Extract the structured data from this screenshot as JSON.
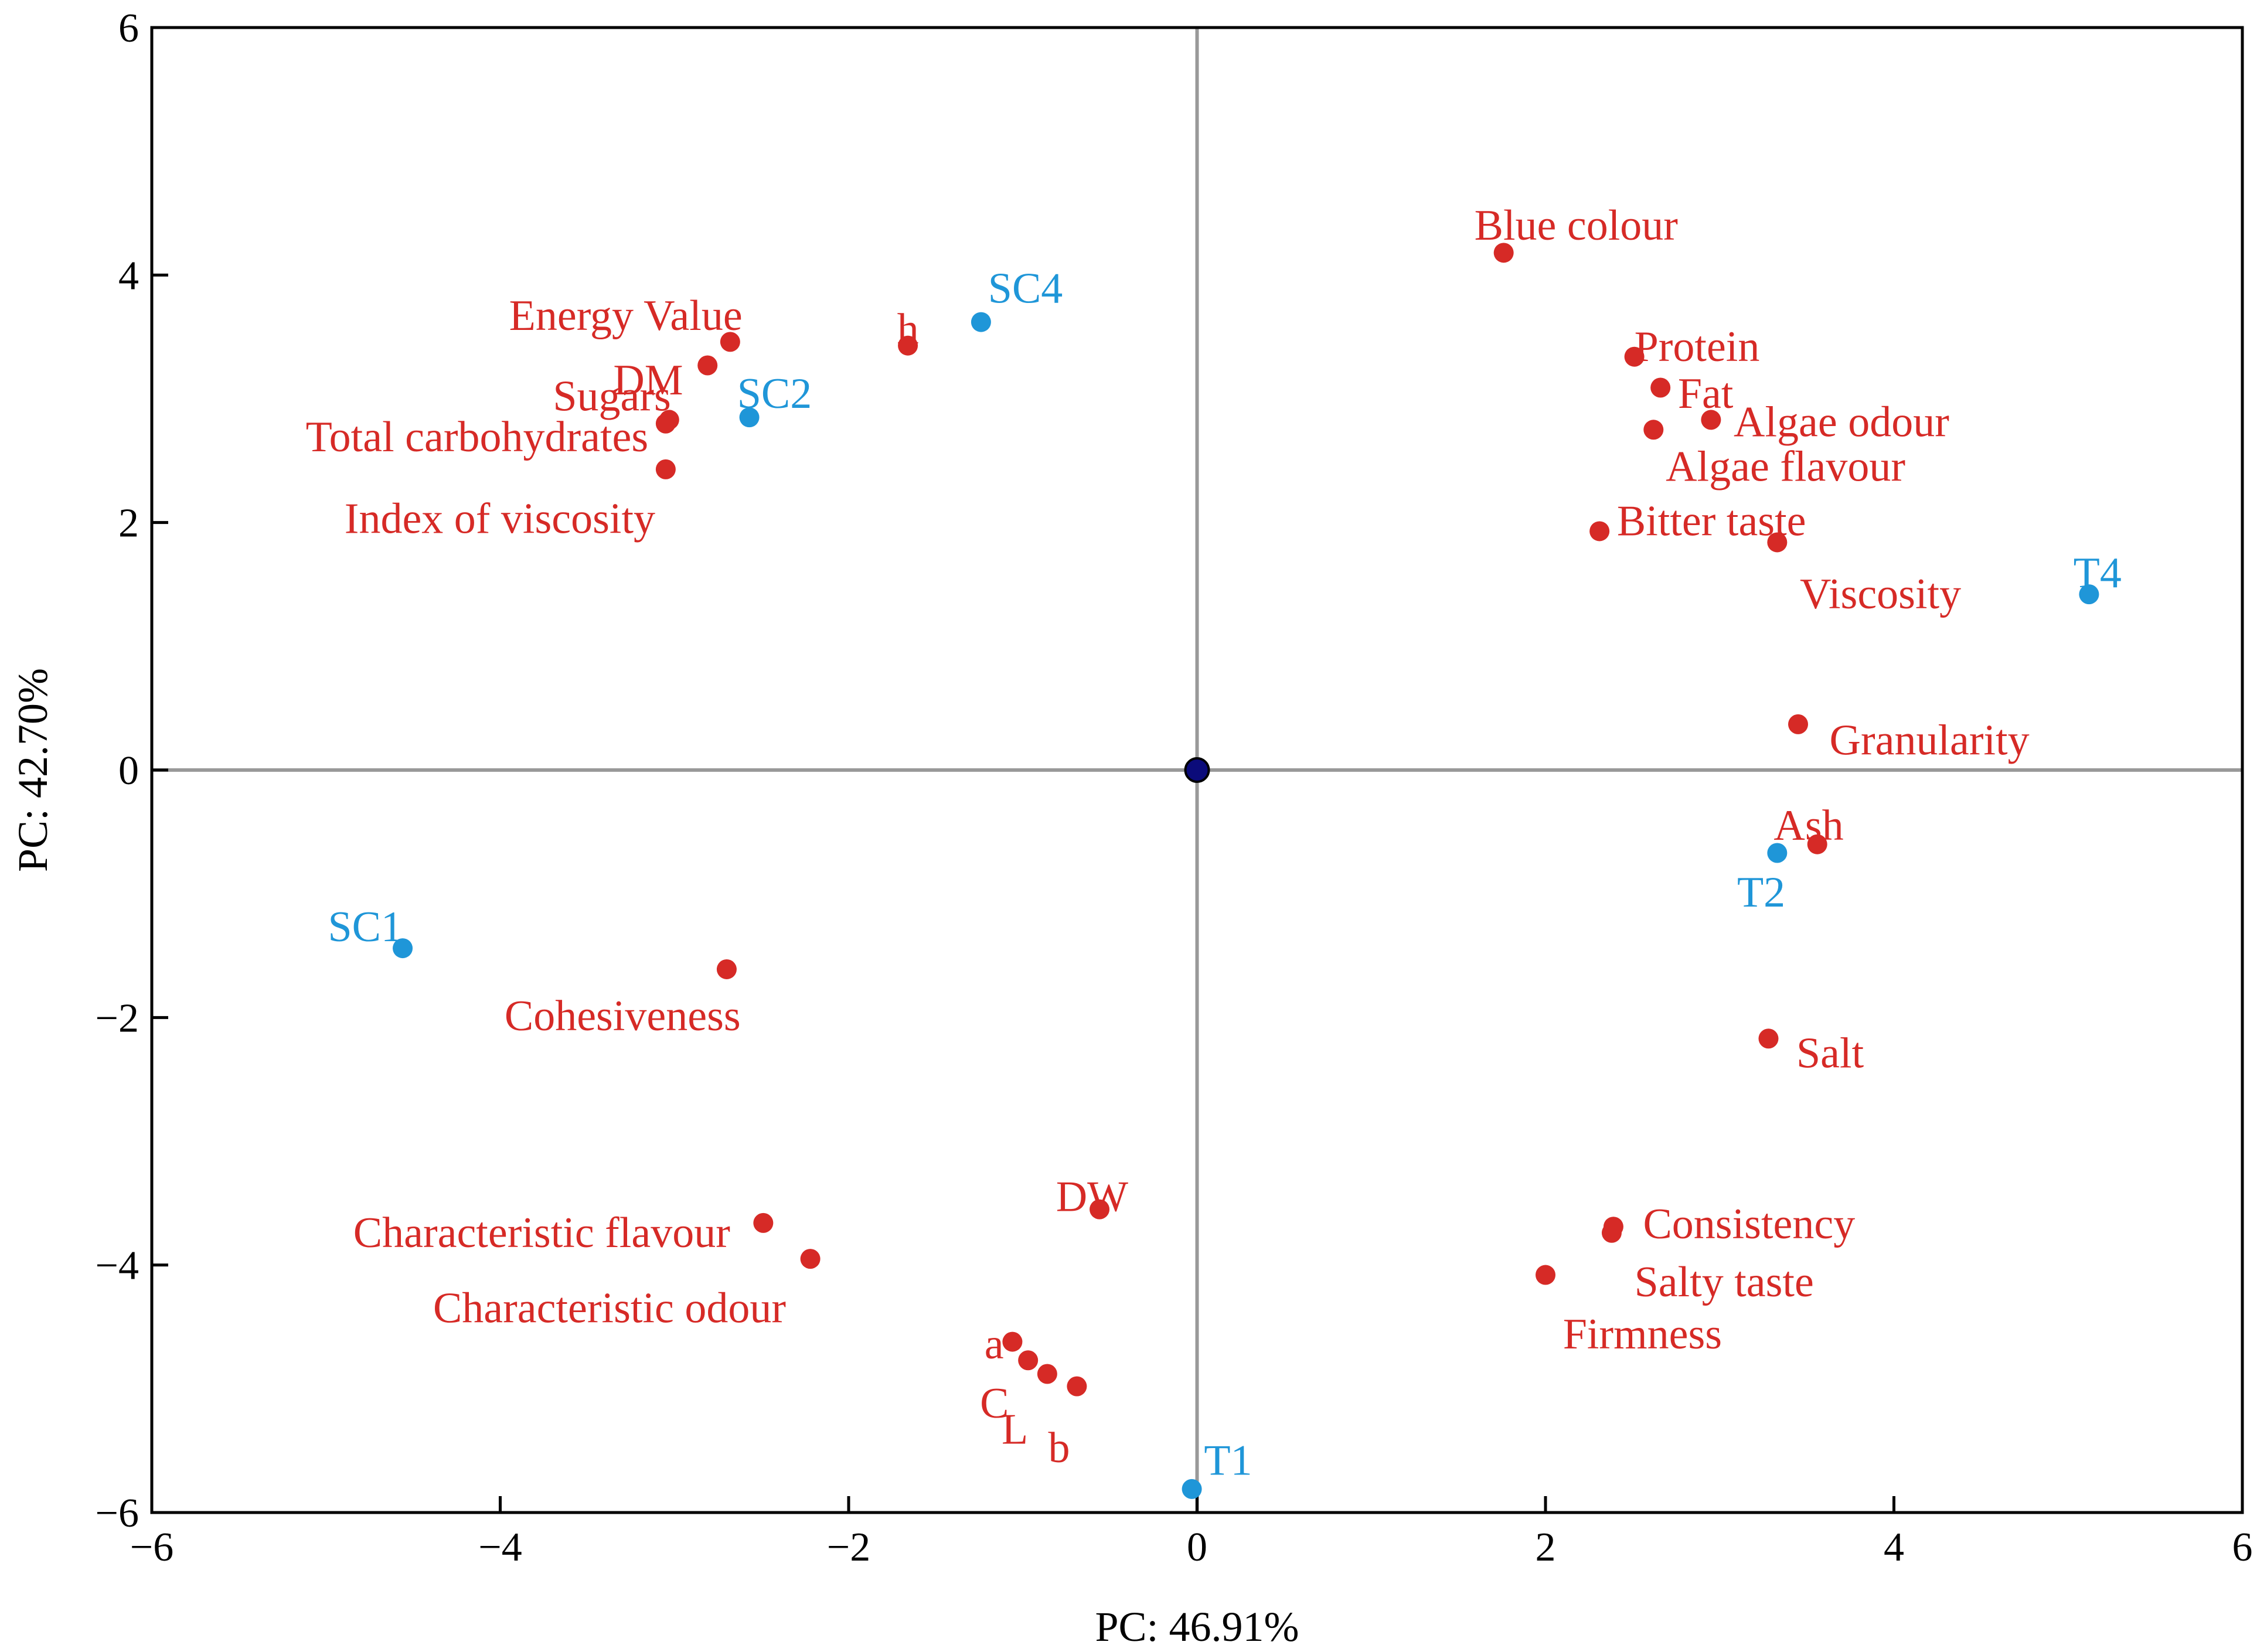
{
  "chart_data": {
    "type": "scatter",
    "title": "",
    "xlabel": "PC: 46.91%",
    "ylabel": "PC: 42.70%",
    "xlim": [
      -6,
      6
    ],
    "ylim": [
      -6,
      6
    ],
    "xticks": [
      "−6",
      "−4",
      "−2",
      "0",
      "2",
      "4",
      "6"
    ],
    "yticks": [
      "6",
      "4",
      "2",
      "0",
      "−2",
      "−4",
      "−6"
    ],
    "grid": false,
    "colors": {
      "variables": "#d62a26",
      "samples": "#1f96d8",
      "origin": "#0b0b7a",
      "axes": "#999999"
    },
    "origin": {
      "x": 0,
      "y": 0
    },
    "series": [
      {
        "name": "variables",
        "color": "#d62a26",
        "points": [
          {
            "label": "Blue colour",
            "x": 1.76,
            "y": 4.18,
            "anchor": "end",
            "dx": 1.0,
            "dy": 0.22
          },
          {
            "label": "Protein",
            "x": 2.51,
            "y": 3.34,
            "anchor": "start",
            "dx": 0.0,
            "dy": 0.08
          },
          {
            "label": "Fat",
            "x": 2.66,
            "y": 3.09,
            "anchor": "start",
            "dx": 0.1,
            "dy": -0.05
          },
          {
            "label": "Algae odour",
            "x": 2.95,
            "y": 2.83,
            "anchor": "start",
            "dx": 0.13,
            "dy": -0.02
          },
          {
            "label": "Algae flavour",
            "x": 2.62,
            "y": 2.75,
            "anchor": "start",
            "dx": 0.07,
            "dy": -0.3
          },
          {
            "label": "Bitter taste",
            "x": 2.31,
            "y": 1.93,
            "anchor": "start",
            "dx": 0.1,
            "dy": 0.08
          },
          {
            "label": "Viscosity",
            "x": 3.33,
            "y": 1.84,
            "anchor": "start",
            "dx": 0.13,
            "dy": -0.42
          },
          {
            "label": "Granularity",
            "x": 3.45,
            "y": 0.37,
            "anchor": "start",
            "dx": 0.18,
            "dy": -0.13
          },
          {
            "label": "Ash",
            "x": 3.56,
            "y": -0.6,
            "anchor": "start",
            "dx": -0.25,
            "dy": 0.15
          },
          {
            "label": "Salt",
            "x": 3.28,
            "y": -2.17,
            "anchor": "start",
            "dx": 0.16,
            "dy": -0.12
          },
          {
            "label": "Consistency",
            "x": 2.39,
            "y": -3.69,
            "anchor": "start",
            "dx": 0.17,
            "dy": 0.02
          },
          {
            "label": "Salty taste",
            "x": 2.38,
            "y": -3.74,
            "anchor": "start",
            "dx": 0.13,
            "dy": -0.4
          },
          {
            "label": "Firmness",
            "x": 2.0,
            "y": -4.08,
            "anchor": "start",
            "dx": 0.1,
            "dy": -0.48
          },
          {
            "label": "DW",
            "x": -0.56,
            "y": -3.55,
            "anchor": "start",
            "dx": -0.25,
            "dy": 0.1
          },
          {
            "label": "a",
            "x": -1.06,
            "y": -4.62,
            "anchor": "end",
            "dx": -0.05,
            "dy": -0.02
          },
          {
            "label": "C",
            "x": -0.97,
            "y": -4.77,
            "anchor": "end",
            "dx": -0.11,
            "dy": -0.35
          },
          {
            "label": "L",
            "x": -0.86,
            "y": -4.88,
            "anchor": "end",
            "dx": -0.11,
            "dy": -0.45
          },
          {
            "label": "b",
            "x": -0.69,
            "y": -4.98,
            "anchor": "end",
            "dx": -0.04,
            "dy": -0.5
          },
          {
            "label": "Characteristic flavour",
            "x": -2.49,
            "y": -3.66,
            "anchor": "end",
            "dx": -0.19,
            "dy": -0.08
          },
          {
            "label": "Characteristic odour",
            "x": -2.22,
            "y": -3.95,
            "anchor": "end",
            "dx": -0.14,
            "dy": -0.4
          },
          {
            "label": "Cohesiveness",
            "x": -2.7,
            "y": -1.61,
            "anchor": "end",
            "dx": 0.08,
            "dy": -0.38
          },
          {
            "label": "Index of viscosity",
            "x": -3.05,
            "y": 2.43,
            "anchor": "end",
            "dx": -0.06,
            "dy": -0.4
          },
          {
            "label": "Total carbohydrates",
            "x": -3.03,
            "y": 2.83,
            "anchor": "end",
            "dx": -0.12,
            "dy": -0.14
          },
          {
            "label": "Sugars",
            "x": -3.05,
            "y": 2.8,
            "anchor": "end",
            "dx": 0.03,
            "dy": 0.22
          },
          {
            "label": "DM",
            "x": -2.81,
            "y": 3.27,
            "anchor": "end",
            "dx": -0.14,
            "dy": -0.12
          },
          {
            "label": "Energy Value",
            "x": -2.68,
            "y": 3.46,
            "anchor": "end",
            "dx": 0.07,
            "dy": 0.21
          },
          {
            "label": "h",
            "x": -1.66,
            "y": 3.43,
            "anchor": "middle",
            "dx": 0.0,
            "dy": 0.13
          }
        ]
      },
      {
        "name": "samples",
        "color": "#1f96d8",
        "points": [
          {
            "label": "SC4",
            "x": -1.24,
            "y": 3.62,
            "anchor": "start",
            "dx": 0.04,
            "dy": 0.27
          },
          {
            "label": "SC2",
            "x": -2.57,
            "y": 2.85,
            "anchor": "start",
            "dx": -0.07,
            "dy": 0.19
          },
          {
            "label": "SC1",
            "x": -4.56,
            "y": -1.44,
            "anchor": "end",
            "dx": 0.0,
            "dy": 0.17
          },
          {
            "label": "T4",
            "x": 5.12,
            "y": 1.42,
            "anchor": "start",
            "dx": -0.09,
            "dy": 0.17
          },
          {
            "label": "T2",
            "x": 3.33,
            "y": -0.67,
            "anchor": "start",
            "dx": -0.23,
            "dy": -0.32
          },
          {
            "label": "T1",
            "x": -0.03,
            "y": -5.81,
            "anchor": "start",
            "dx": 0.07,
            "dy": 0.23
          }
        ]
      }
    ]
  }
}
